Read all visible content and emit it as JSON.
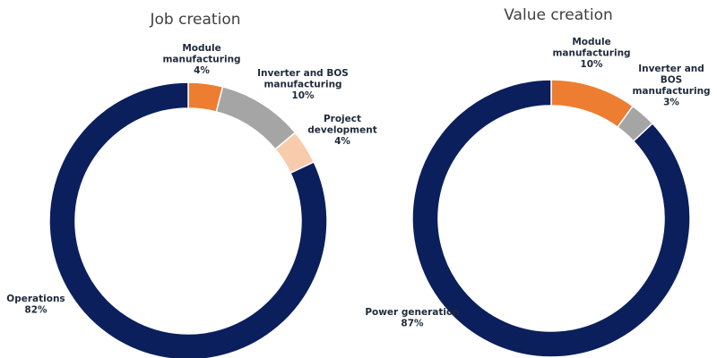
{
  "chart_data": [
    {
      "type": "pie",
      "title": "Job creation",
      "slices": [
        {
          "label": "Module manufacturing",
          "value": 4,
          "display": "4%",
          "color": "#ED7D31"
        },
        {
          "label": "Inverter and BOS manufacturing",
          "value": 10,
          "display": "10%",
          "color": "#A5A5A5"
        },
        {
          "label": "Project development",
          "value": 4,
          "display": "4%",
          "color": "#F8CBAD"
        },
        {
          "label": "Operations",
          "value": 82,
          "display": "82%",
          "color": "#0B1F5C"
        }
      ]
    },
    {
      "type": "pie",
      "title": "Value creation",
      "slices": [
        {
          "label": "Module manufacturing",
          "value": 10,
          "display": "10%",
          "color": "#ED7D31"
        },
        {
          "label": "Inverter and BOS manufacturing",
          "value": 3,
          "display": "3%",
          "color": "#A5A5A5"
        },
        {
          "label": "Power generation",
          "value": 87,
          "display": "87%",
          "color": "#0B1F5C"
        }
      ]
    }
  ]
}
